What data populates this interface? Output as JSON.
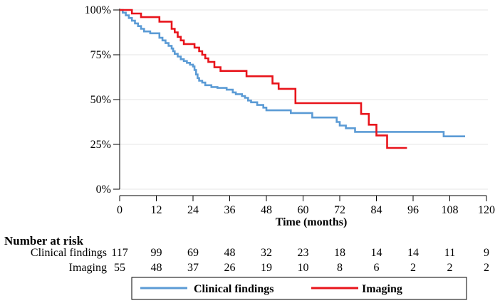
{
  "chart_data": {
    "type": "line",
    "subtype": "kaplan-meier step",
    "title": "",
    "xlabel": "Time (months)",
    "ylabel": "",
    "xlim": [
      0,
      120
    ],
    "ylim": [
      0,
      100
    ],
    "x_ticks": [
      0,
      12,
      24,
      36,
      48,
      60,
      72,
      84,
      96,
      108,
      120
    ],
    "x_tick_labels": [
      "0",
      "12",
      "24",
      "36",
      "48",
      "60",
      "72",
      "84",
      "96",
      "108",
      "120"
    ],
    "y_ticks": [
      0,
      25,
      50,
      75,
      100
    ],
    "y_tick_labels": [
      "0%",
      "25%",
      "50%",
      "75%",
      "100%"
    ],
    "grid": "horizontal",
    "series": [
      {
        "name": "Clinical findings",
        "color": "#5b9bd5",
        "points": [
          [
            0,
            100
          ],
          [
            1,
            98.5
          ],
          [
            2,
            97
          ],
          [
            3,
            95.5
          ],
          [
            4,
            94
          ],
          [
            5,
            92.5
          ],
          [
            6,
            91
          ],
          [
            7,
            89.5
          ],
          [
            8,
            88
          ],
          [
            10,
            87
          ],
          [
            12,
            87
          ],
          [
            13,
            84.5
          ],
          [
            14,
            83
          ],
          [
            15,
            81.5
          ],
          [
            16,
            80
          ],
          [
            17,
            78.5
          ],
          [
            17.5,
            77
          ],
          [
            18,
            75.5
          ],
          [
            19,
            74
          ],
          [
            20,
            72.5
          ],
          [
            21,
            71.5
          ],
          [
            22,
            70.5
          ],
          [
            23,
            69.5
          ],
          [
            24,
            68.5
          ],
          [
            24.5,
            66.5
          ],
          [
            25,
            64
          ],
          [
            25.5,
            62
          ],
          [
            26,
            60.5
          ],
          [
            27,
            59.5
          ],
          [
            28,
            58
          ],
          [
            30,
            57
          ],
          [
            32,
            56.5
          ],
          [
            35,
            55.5
          ],
          [
            37,
            54
          ],
          [
            38,
            53
          ],
          [
            40,
            52
          ],
          [
            41,
            51
          ],
          [
            42,
            49.5
          ],
          [
            43,
            48.5
          ],
          [
            45,
            47
          ],
          [
            47,
            45.5
          ],
          [
            48,
            44
          ],
          [
            56,
            42.5
          ],
          [
            63,
            40
          ],
          [
            71,
            37.5
          ],
          [
            72,
            35.5
          ],
          [
            74,
            34
          ],
          [
            77,
            32
          ],
          [
            105,
            32
          ],
          [
            106,
            29.5
          ],
          [
            113,
            29.5
          ]
        ]
      },
      {
        "name": "Imaging",
        "color": "#e8141b",
        "points": [
          [
            0,
            100
          ],
          [
            4,
            98
          ],
          [
            7,
            96
          ],
          [
            12,
            96
          ],
          [
            13,
            93.5
          ],
          [
            16,
            93.5
          ],
          [
            17,
            89.5
          ],
          [
            18,
            87.5
          ],
          [
            19,
            85
          ],
          [
            20,
            83
          ],
          [
            21,
            81
          ],
          [
            24,
            81
          ],
          [
            24.5,
            79
          ],
          [
            26,
            77
          ],
          [
            27,
            75
          ],
          [
            28,
            73
          ],
          [
            29,
            71
          ],
          [
            31,
            68
          ],
          [
            33,
            66
          ],
          [
            41,
            66
          ],
          [
            41.5,
            63
          ],
          [
            49,
            63
          ],
          [
            50,
            59
          ],
          [
            52,
            56
          ],
          [
            57,
            56
          ],
          [
            57.5,
            48
          ],
          [
            78.5,
            48
          ],
          [
            79,
            42
          ],
          [
            81,
            42
          ],
          [
            81.5,
            36
          ],
          [
            83,
            36
          ],
          [
            84,
            30
          ],
          [
            87,
            30
          ],
          [
            87.5,
            23
          ],
          [
            94,
            23
          ]
        ]
      }
    ],
    "risk_table": {
      "title": "Number at risk",
      "times": [
        0,
        12,
        24,
        36,
        48,
        60,
        72,
        84,
        96,
        108,
        120
      ],
      "rows": [
        {
          "label": "Clinical findings",
          "values": [
            "117",
            "99",
            "69",
            "48",
            "32",
            "23",
            "18",
            "14",
            "14",
            "11",
            "9"
          ]
        },
        {
          "label": "Imaging",
          "values": [
            "55",
            "48",
            "37",
            "26",
            "19",
            "10",
            "8",
            "6",
            "2",
            "2",
            "2"
          ]
        }
      ]
    },
    "legend": {
      "position": "bottom",
      "entries": [
        "Clinical findings",
        "Imaging"
      ]
    }
  }
}
